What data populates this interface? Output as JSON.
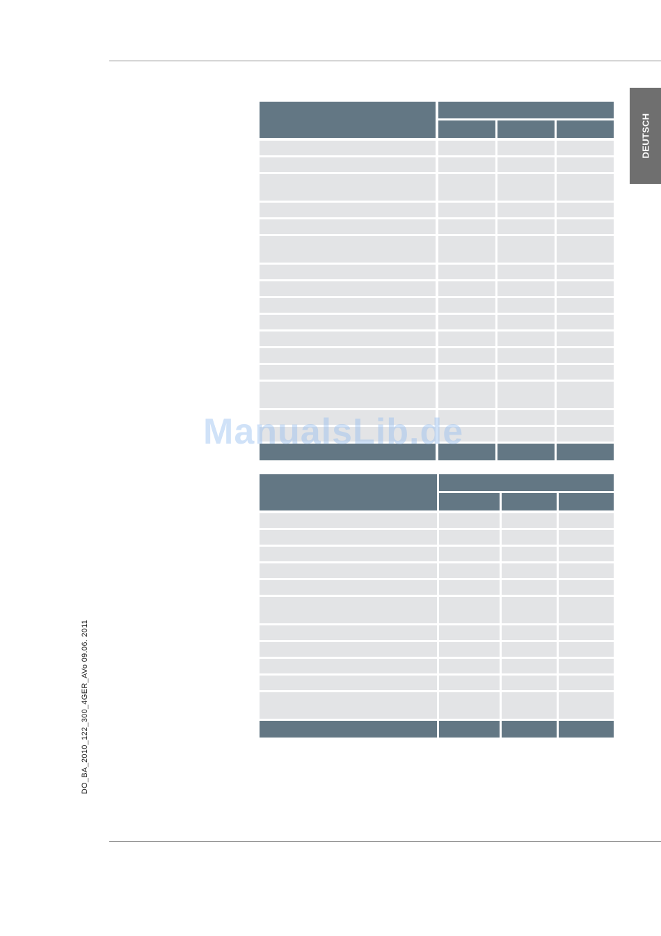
{
  "page": {
    "language_tab": "DEUTSCH",
    "document_ref": "DO_BA_2010_122_300_4GER_AVo   09.06. 2011",
    "watermark": "ManualsLib.de"
  },
  "colors": {
    "header": "#637784",
    "row": "#e3e4e6",
    "tab": "#6f6f6f",
    "rule": "#8c8c8c"
  },
  "tables": [
    {
      "name": "table-1",
      "columns": 4,
      "body_rows": 18,
      "footer_rows": 1
    },
    {
      "name": "table-2",
      "columns": 4,
      "body_rows": 12,
      "footer_rows": 1
    }
  ]
}
